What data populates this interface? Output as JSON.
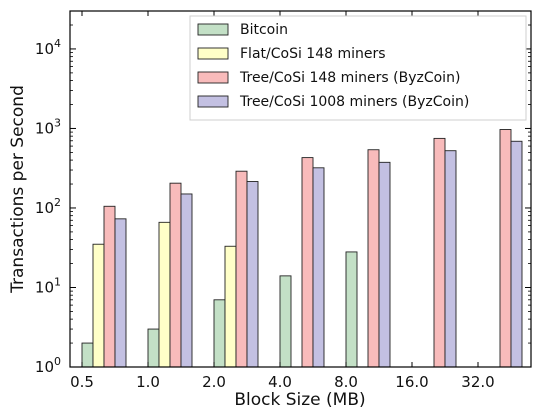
{
  "chart_data": {
    "type": "bar",
    "title": "",
    "xlabel": "Block Size (MB)",
    "ylabel": "Transactions per Second",
    "yscale": "log",
    "ylim": [
      1,
      30000
    ],
    "categories": [
      "0.5",
      "1.0",
      "2.0",
      "4.0",
      "8.0",
      "16.0",
      "32.0"
    ],
    "y_ticks": [
      {
        "value": 1,
        "base": "10",
        "exp": "0"
      },
      {
        "value": 10,
        "base": "10",
        "exp": "1"
      },
      {
        "value": 100,
        "base": "10",
        "exp": "2"
      },
      {
        "value": 1000,
        "base": "10",
        "exp": "3"
      },
      {
        "value": 10000,
        "base": "10",
        "exp": "4"
      }
    ],
    "grid": false,
    "legend_position": "top-right",
    "series": [
      {
        "name": "Bitcoin",
        "color": "#c3e0c6",
        "values": [
          2,
          3,
          7,
          14,
          28,
          null,
          null
        ]
      },
      {
        "name": "Flat/CoSi 148 miners",
        "color": "#ffffc8",
        "values": [
          35,
          66,
          33,
          null,
          null,
          null,
          null
        ]
      },
      {
        "name": "Tree/CoSi 148 miners (ByzCoin)",
        "color": "#f8bbbb",
        "values": [
          105,
          205,
          290,
          430,
          540,
          750,
          970
        ]
      },
      {
        "name": "Tree/CoSi 1008 miners (ByzCoin)",
        "color": "#c3c0e2",
        "values": [
          73,
          150,
          215,
          320,
          375,
          525,
          690
        ]
      }
    ]
  }
}
